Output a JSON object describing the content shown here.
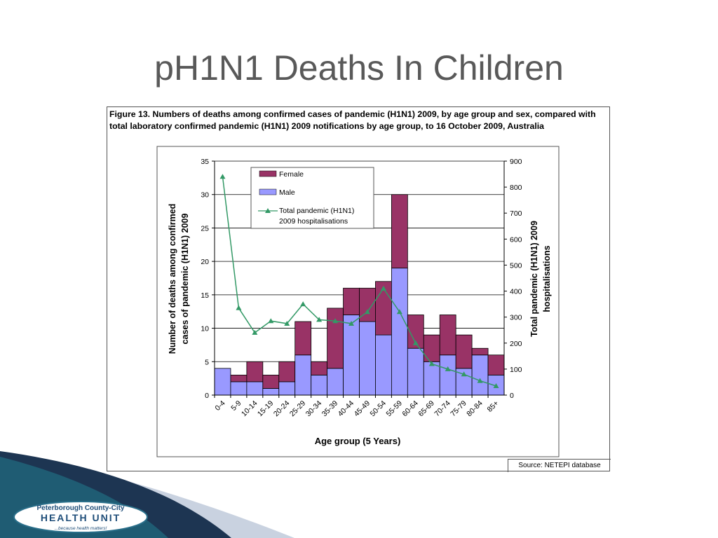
{
  "slide": {
    "title": "pH1N1 Deaths In Children"
  },
  "figure": {
    "caption": "Figure 13. Numbers of deaths among confirmed cases of pandemic (H1N1) 2009, by age group and sex, compared with total laboratory confirmed pandemic (H1N1) 2009 notifications by age group, to 16 October 2009, Australia",
    "source": "Source: NETEPI database"
  },
  "logo": {
    "line1": "Peterborough County-City",
    "line2": "HEALTH UNIT",
    "tagline": "...because health matters!"
  },
  "chart_data": {
    "type": "bar",
    "stacked": true,
    "categories": [
      "0-4",
      "5-9",
      "10-14",
      "15-19",
      "20-24",
      "25-29",
      "30-34",
      "35-39",
      "40-44",
      "45-49",
      "50-54",
      "55-59",
      "60-64",
      "65-69",
      "70-74",
      "75-79",
      "80-84",
      "85+"
    ],
    "series": [
      {
        "name": "Male",
        "color": "#9999ff",
        "axis": "left",
        "values": [
          4,
          2,
          2,
          1,
          2,
          6,
          3,
          4,
          12,
          11,
          9,
          19,
          7,
          5,
          6,
          4,
          6,
          3
        ]
      },
      {
        "name": "Female",
        "color": "#993366",
        "axis": "left",
        "values": [
          0,
          1,
          3,
          2,
          3,
          5,
          2,
          9,
          4,
          5,
          8,
          11,
          5,
          4,
          6,
          5,
          1,
          3
        ]
      },
      {
        "name": "Total pandemic (H1N1) 2009 hospitalisations",
        "type": "line",
        "color": "#339966",
        "axis": "right",
        "values": [
          840,
          335,
          240,
          285,
          275,
          350,
          290,
          285,
          275,
          320,
          410,
          320,
          200,
          120,
          100,
          80,
          55,
          35
        ]
      }
    ],
    "legend": [
      "Female",
      "Male",
      "Total pandemic (H1N1) 2009 hospitalisations"
    ],
    "legend_labels": {
      "female": "Female",
      "male": "Male",
      "line1": "Total pandemic (H1N1)",
      "line2": "2009 hospitalisations"
    },
    "legend_position": "top-left",
    "xlabel": "Age group (5 Years)",
    "ylabel_left": [
      "Number of deaths among confirmed",
      "cases of pandemic (H1N1) 2009"
    ],
    "ylabel_right": [
      "Total pandemic (H1N1) 2009",
      "hospitalisations"
    ],
    "ylim_left": [
      0,
      35
    ],
    "yticks_left": [
      0,
      5,
      10,
      15,
      20,
      25,
      30,
      35
    ],
    "ylim_right": [
      0,
      900
    ],
    "yticks_right": [
      0,
      100,
      200,
      300,
      400,
      500,
      600,
      700,
      800,
      900
    ],
    "grid": true
  }
}
